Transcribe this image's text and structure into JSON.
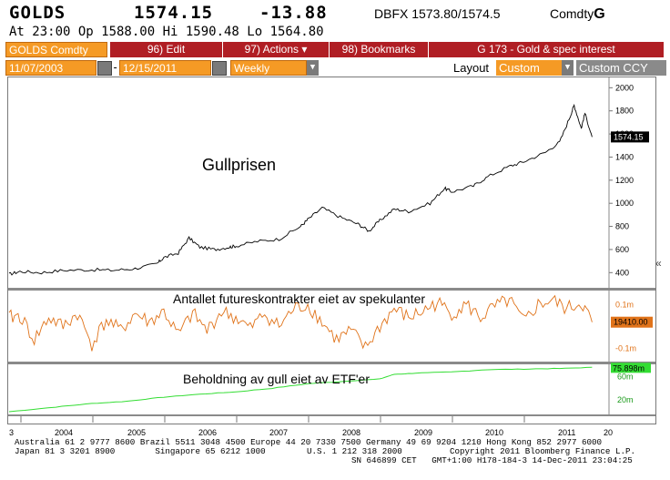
{
  "header": {
    "ticker": "GOLDS",
    "price": "1574.15",
    "change": "-13.88",
    "source_quote": "DBFX 1573.80/1574.5",
    "sector": "Comdty",
    "sector_letter": "G"
  },
  "quote_line": "At 23:00  Op 1588.00 Hi 1590.48 Lo 1564.80",
  "toolbar": {
    "security": "GOLDS Comdty",
    "edit": "96) Edit",
    "actions": "97) Actions",
    "bookmarks": "98) Bookmarks",
    "title": "G 173 - Gold & spec interest",
    "start_date": "11/07/2003",
    "date_separator": "-",
    "end_date": "12/15/2011",
    "frequency": "Weekly",
    "layout_label": "Layout",
    "layout_value": "Custom",
    "currency": "Custom CCY"
  },
  "colors": {
    "accent_orange": "#f59a25",
    "toolbar_red": "#b01e24",
    "gold_line": "#000000",
    "futures_line": "#e0731a",
    "etf_line": "#33dd33"
  },
  "annotations": {
    "gold": "Gullprisen",
    "futures": "Antallet futureskontrakter eiet av spekulanter",
    "etf": "Beholdning av gull eiet av ETF'er"
  },
  "chart_data": [
    {
      "type": "line",
      "name": "gold_price",
      "x": [
        2003.85,
        2004.0,
        2004.3,
        2004.6,
        2005.0,
        2005.3,
        2005.6,
        2005.9,
        2006.0,
        2006.2,
        2006.35,
        2006.5,
        2006.7,
        2006.9,
        2007.0,
        2007.3,
        2007.6,
        2007.9,
        2008.0,
        2008.2,
        2008.45,
        2008.7,
        2008.85,
        2009.0,
        2009.2,
        2009.4,
        2009.7,
        2009.9,
        2010.0,
        2010.3,
        2010.5,
        2010.8,
        2011.0,
        2011.3,
        2011.5,
        2011.65,
        2011.7,
        2011.8,
        2011.85,
        2011.95
      ],
      "y": [
        385,
        410,
        400,
        420,
        425,
        420,
        435,
        475,
        530,
        570,
        700,
        620,
        600,
        620,
        630,
        670,
        690,
        800,
        860,
        960,
        880,
        820,
        760,
        850,
        950,
        930,
        1000,
        1130,
        1100,
        1150,
        1230,
        1320,
        1360,
        1440,
        1530,
        1760,
        1850,
        1650,
        1780,
        1574
      ],
      "ylim": [
        300,
        2050
      ],
      "y_ticks": [
        400,
        600,
        800,
        1000,
        1200,
        1400,
        1600,
        1800,
        2000
      ],
      "last_value_label": "1574.15"
    },
    {
      "type": "line",
      "name": "speculative_futures",
      "x": [
        2003.85,
        2004.0,
        2004.2,
        2004.4,
        2004.6,
        2004.8,
        2005.0,
        2005.2,
        2005.4,
        2005.6,
        2005.8,
        2006.0,
        2006.2,
        2006.4,
        2006.6,
        2006.8,
        2007.0,
        2007.2,
        2007.4,
        2007.6,
        2007.8,
        2008.0,
        2008.2,
        2008.4,
        2008.6,
        2008.8,
        2009.0,
        2009.2,
        2009.4,
        2009.6,
        2009.8,
        2010.0,
        2010.2,
        2010.4,
        2010.6,
        2010.8,
        2011.0,
        2011.2,
        2011.4,
        2011.6,
        2011.8,
        2011.95
      ],
      "y": [
        0.04,
        0.05,
        -0.06,
        0.04,
        0.0,
        0.06,
        -0.08,
        0.03,
        -0.02,
        0.06,
        0.02,
        0.07,
        -0.04,
        0.06,
        -0.02,
        0.07,
        0.04,
        -0.01,
        0.06,
        0.0,
        0.08,
        0.1,
        0.02,
        -0.06,
        -0.02,
        -0.1,
        0.0,
        0.08,
        0.04,
        0.07,
        0.11,
        0.06,
        0.1,
        0.04,
        0.09,
        0.12,
        0.02,
        0.1,
        0.12,
        0.08,
        0.11,
        0.02
      ],
      "y_ticks": [
        "0.1m",
        "-0.1m"
      ],
      "last_value_label": "19410.00"
    },
    {
      "type": "line",
      "name": "etf_holdings",
      "x": [
        2003.85,
        2004.5,
        2005.0,
        2005.5,
        2006.0,
        2006.5,
        2007.0,
        2007.5,
        2008.0,
        2008.5,
        2009.0,
        2009.2,
        2009.5,
        2010.0,
        2010.5,
        2011.0,
        2011.5,
        2011.95
      ],
      "y": [
        0,
        8,
        14,
        18,
        25,
        30,
        34,
        40,
        48,
        52,
        56,
        64,
        66,
        68,
        72,
        73,
        74,
        75.9
      ],
      "y_ticks": [
        "60m",
        "20m"
      ],
      "last_value_label": "75.898m"
    }
  ],
  "x_axis": {
    "labels": [
      "3",
      "2004",
      "2005",
      "2006",
      "2007",
      "2008",
      "2009",
      "2010",
      "2011",
      "20"
    ]
  },
  "footer": {
    "line1": "Australia 61 2 9777 8600 Brazil 5511 3048 4500 Europe 44 20 7330 7500 Germany 49 69 9204 1210 Hong Kong 852 2977 6000",
    "line2_left": "Japan 81 3 3201 8900        Singapore 65 6212 1000",
    "line2_mid": "U.S. 1 212 318 2000",
    "line2_right": "Copyright 2011 Bloomberg Finance L.P.",
    "line3": "SN 646899 CET   GMT+1:00 H178-184-3 14-Dec-2011 23:04:25"
  }
}
